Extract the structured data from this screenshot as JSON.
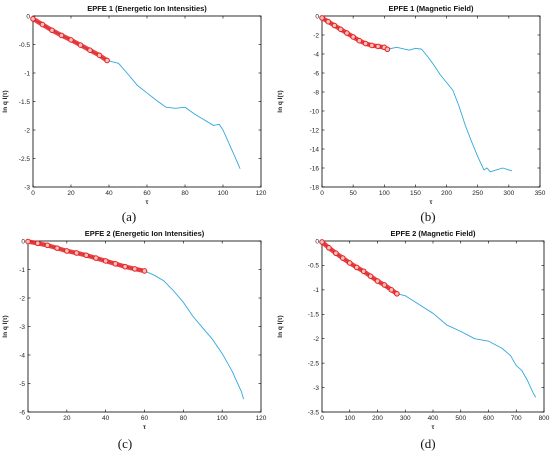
{
  "colors": {
    "line": "#2fa8dc",
    "fit_marker": "#e82020",
    "fit_fill": "#f4c0c0",
    "axes": "#000000"
  },
  "captions": [
    "(a)",
    "(b)",
    "(c)",
    "(d)"
  ],
  "chart_data": [
    {
      "type": "line",
      "title": "EPFE 1 (Energetic Ion Intensities)",
      "xlabel": "τ",
      "ylabel": "ln q I(τ)",
      "xlim": [
        0,
        120
      ],
      "ylim": [
        -3,
        0
      ],
      "xticks": [
        "0",
        "20",
        "40",
        "60",
        "80",
        "100",
        "120"
      ],
      "yticks": [
        "0",
        "-0.5",
        "-1",
        "-1.5",
        "-2",
        "-2.5",
        "-3"
      ],
      "series": [
        {
          "style": "line",
          "x": [
            0,
            10,
            20,
            30,
            39,
            45,
            50,
            55,
            60,
            65,
            70,
            75,
            80,
            85,
            90,
            95,
            98,
            100,
            104,
            108,
            109
          ],
          "y": [
            -0.05,
            -0.25,
            -0.42,
            -0.6,
            -0.78,
            -0.83,
            -1.02,
            -1.22,
            -1.35,
            -1.48,
            -1.6,
            -1.62,
            -1.6,
            -1.72,
            -1.82,
            -1.92,
            -1.9,
            -2.0,
            -2.3,
            -2.6,
            -2.68
          ]
        },
        {
          "style": "markers",
          "x": [
            0,
            5,
            10,
            15,
            20,
            25,
            30,
            35,
            39
          ],
          "y": [
            -0.05,
            -0.15,
            -0.25,
            -0.34,
            -0.42,
            -0.51,
            -0.6,
            -0.69,
            -0.78
          ]
        }
      ]
    },
    {
      "type": "line",
      "title": "EPFE 1 (Magnetic Field)",
      "xlabel": "τ",
      "ylabel": "ln q I(τ)",
      "xlim": [
        0,
        350
      ],
      "ylim": [
        -18,
        0
      ],
      "xticks": [
        "0",
        "50",
        "100",
        "150",
        "200",
        "250",
        "300",
        "350"
      ],
      "yticks": [
        "0",
        "-2",
        "-4",
        "-6",
        "-8",
        "-10",
        "-12",
        "-14",
        "-16",
        "-18"
      ],
      "series": [
        {
          "style": "line",
          "x": [
            0,
            20,
            40,
            60,
            80,
            100,
            105,
            120,
            140,
            150,
            160,
            170,
            180,
            190,
            200,
            210,
            220,
            230,
            240,
            250,
            260,
            265,
            270,
            280,
            290,
            300,
            305
          ],
          "y": [
            -0.2,
            -1.0,
            -1.8,
            -2.6,
            -3.1,
            -3.3,
            -3.5,
            -3.3,
            -3.6,
            -3.4,
            -3.5,
            -4.3,
            -5.2,
            -6.2,
            -7.0,
            -7.8,
            -9.5,
            -11.5,
            -13.2,
            -14.8,
            -16.2,
            -16.0,
            -16.4,
            -16.2,
            -16.0,
            -16.2,
            -16.3
          ]
        },
        {
          "style": "markers",
          "x": [
            0,
            10,
            20,
            30,
            40,
            50,
            60,
            70,
            80,
            90,
            100,
            105
          ],
          "y": [
            -0.2,
            -0.6,
            -1.0,
            -1.4,
            -1.8,
            -2.2,
            -2.6,
            -2.9,
            -3.1,
            -3.2,
            -3.3,
            -3.5
          ]
        }
      ]
    },
    {
      "type": "line",
      "title": "EPFE 2 (Energetic Ion Intensities)",
      "xlabel": "τ",
      "ylabel": "ln q I(τ)",
      "xlim": [
        0,
        120
      ],
      "ylim": [
        -6,
        0
      ],
      "xticks": [
        "0",
        "20",
        "40",
        "60",
        "80",
        "100",
        "120"
      ],
      "yticks": [
        "0",
        "-1",
        "-2",
        "-3",
        "-4",
        "-5",
        "-6"
      ],
      "series": [
        {
          "style": "line",
          "x": [
            0,
            10,
            20,
            30,
            40,
            50,
            60,
            65,
            70,
            75,
            80,
            85,
            90,
            95,
            100,
            105,
            110,
            111
          ],
          "y": [
            -0.02,
            -0.15,
            -0.35,
            -0.5,
            -0.7,
            -0.9,
            -1.05,
            -1.2,
            -1.4,
            -1.75,
            -2.15,
            -2.65,
            -3.05,
            -3.45,
            -3.95,
            -4.55,
            -5.3,
            -5.55
          ]
        },
        {
          "style": "markers",
          "x": [
            0,
            5,
            10,
            15,
            20,
            25,
            30,
            35,
            40,
            45,
            50,
            55,
            60
          ],
          "y": [
            -0.02,
            -0.08,
            -0.15,
            -0.25,
            -0.35,
            -0.42,
            -0.5,
            -0.6,
            -0.7,
            -0.8,
            -0.9,
            -0.98,
            -1.05
          ]
        }
      ]
    },
    {
      "type": "line",
      "title": "EPFE 2 (Magnetic Field)",
      "xlabel": "τ",
      "ylabel": "ln q I(τ)",
      "xlim": [
        0,
        800
      ],
      "ylim": [
        -3.5,
        0
      ],
      "xticks": [
        "0",
        "100",
        "200",
        "300",
        "400",
        "500",
        "600",
        "700",
        "800"
      ],
      "yticks": [
        "0",
        "-0.5",
        "-1",
        "-1.5",
        "-2",
        "-2.5",
        "-3",
        "-3.5"
      ],
      "series": [
        {
          "style": "line",
          "x": [
            0,
            50,
            100,
            150,
            200,
            250,
            270,
            300,
            350,
            400,
            450,
            500,
            550,
            600,
            650,
            680,
            700,
            720,
            740,
            760,
            770
          ],
          "y": [
            -0.02,
            -0.25,
            -0.45,
            -0.62,
            -0.82,
            -1.0,
            -1.08,
            -1.12,
            -1.3,
            -1.48,
            -1.72,
            -1.85,
            -2.0,
            -2.05,
            -2.2,
            -2.35,
            -2.55,
            -2.65,
            -2.85,
            -3.1,
            -3.2
          ]
        },
        {
          "style": "markers",
          "x": [
            0,
            25,
            50,
            75,
            100,
            125,
            150,
            175,
            200,
            225,
            250,
            270
          ],
          "y": [
            -0.02,
            -0.14,
            -0.25,
            -0.35,
            -0.45,
            -0.54,
            -0.62,
            -0.72,
            -0.82,
            -0.9,
            -1.0,
            -1.08
          ]
        }
      ]
    }
  ]
}
